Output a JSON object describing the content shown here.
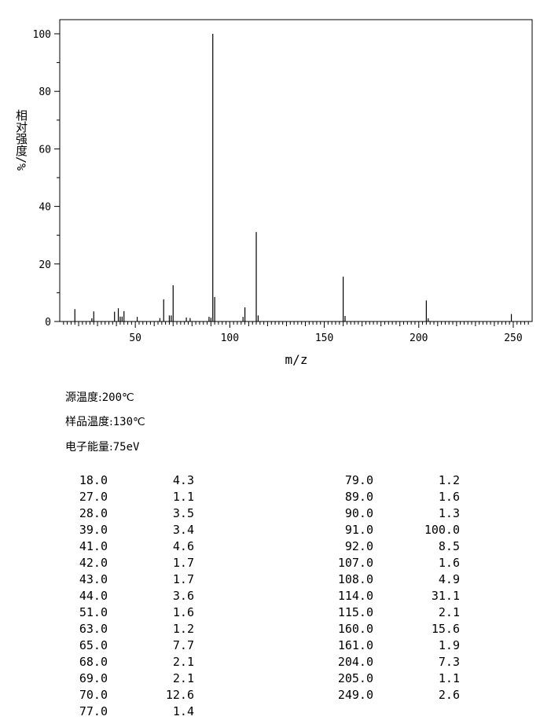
{
  "chart_data": {
    "type": "bar",
    "xlabel": "m/z",
    "ylabel": "相对强度/%",
    "xlim": [
      10,
      260
    ],
    "ylim": [
      0,
      100
    ],
    "xticks": [
      50,
      100,
      150,
      200,
      250
    ],
    "yticks": [
      0,
      20,
      40,
      60,
      80,
      100
    ],
    "peaks": [
      {
        "x": 18.0,
        "y": 4.3
      },
      {
        "x": 27.0,
        "y": 1.1
      },
      {
        "x": 28.0,
        "y": 3.5
      },
      {
        "x": 39.0,
        "y": 3.4
      },
      {
        "x": 41.0,
        "y": 4.6
      },
      {
        "x": 42.0,
        "y": 1.7
      },
      {
        "x": 43.0,
        "y": 1.7
      },
      {
        "x": 44.0,
        "y": 3.6
      },
      {
        "x": 51.0,
        "y": 1.6
      },
      {
        "x": 63.0,
        "y": 1.2
      },
      {
        "x": 65.0,
        "y": 7.7
      },
      {
        "x": 68.0,
        "y": 2.1
      },
      {
        "x": 69.0,
        "y": 2.1
      },
      {
        "x": 70.0,
        "y": 12.6
      },
      {
        "x": 77.0,
        "y": 1.4
      },
      {
        "x": 79.0,
        "y": 1.2
      },
      {
        "x": 89.0,
        "y": 1.6
      },
      {
        "x": 90.0,
        "y": 1.3
      },
      {
        "x": 91.0,
        "y": 100.0
      },
      {
        "x": 92.0,
        "y": 8.5
      },
      {
        "x": 107.0,
        "y": 1.6
      },
      {
        "x": 108.0,
        "y": 4.9
      },
      {
        "x": 114.0,
        "y": 31.1
      },
      {
        "x": 115.0,
        "y": 2.1
      },
      {
        "x": 160.0,
        "y": 15.6
      },
      {
        "x": 161.0,
        "y": 1.9
      },
      {
        "x": 204.0,
        "y": 7.3
      },
      {
        "x": 205.0,
        "y": 1.1
      },
      {
        "x": 249.0,
        "y": 2.6
      }
    ]
  },
  "conditions": {
    "source_temp_label": "源温度:",
    "source_temp_value": "200℃",
    "sample_temp_label": "样品温度:",
    "sample_temp_value": "130℃",
    "electron_energy_label": "电子能量:",
    "electron_energy_value": "75eV"
  },
  "peak_table": {
    "left": [
      [
        "18.0",
        "4.3"
      ],
      [
        "27.0",
        "1.1"
      ],
      [
        "28.0",
        "3.5"
      ],
      [
        "39.0",
        "3.4"
      ],
      [
        "41.0",
        "4.6"
      ],
      [
        "42.0",
        "1.7"
      ],
      [
        "43.0",
        "1.7"
      ],
      [
        "44.0",
        "3.6"
      ],
      [
        "51.0",
        "1.6"
      ],
      [
        "63.0",
        "1.2"
      ],
      [
        "65.0",
        "7.7"
      ],
      [
        "68.0",
        "2.1"
      ],
      [
        "69.0",
        "2.1"
      ],
      [
        "70.0",
        "12.6"
      ],
      [
        "77.0",
        "1.4"
      ]
    ],
    "right": [
      [
        "79.0",
        "1.2"
      ],
      [
        "89.0",
        "1.6"
      ],
      [
        "90.0",
        "1.3"
      ],
      [
        "91.0",
        "100.0"
      ],
      [
        "92.0",
        "8.5"
      ],
      [
        "107.0",
        "1.6"
      ],
      [
        "108.0",
        "4.9"
      ],
      [
        "114.0",
        "31.1"
      ],
      [
        "115.0",
        "2.1"
      ],
      [
        "160.0",
        "15.6"
      ],
      [
        "161.0",
        "1.9"
      ],
      [
        "204.0",
        "7.3"
      ],
      [
        "205.0",
        "1.1"
      ],
      [
        "249.0",
        "2.6"
      ]
    ]
  }
}
